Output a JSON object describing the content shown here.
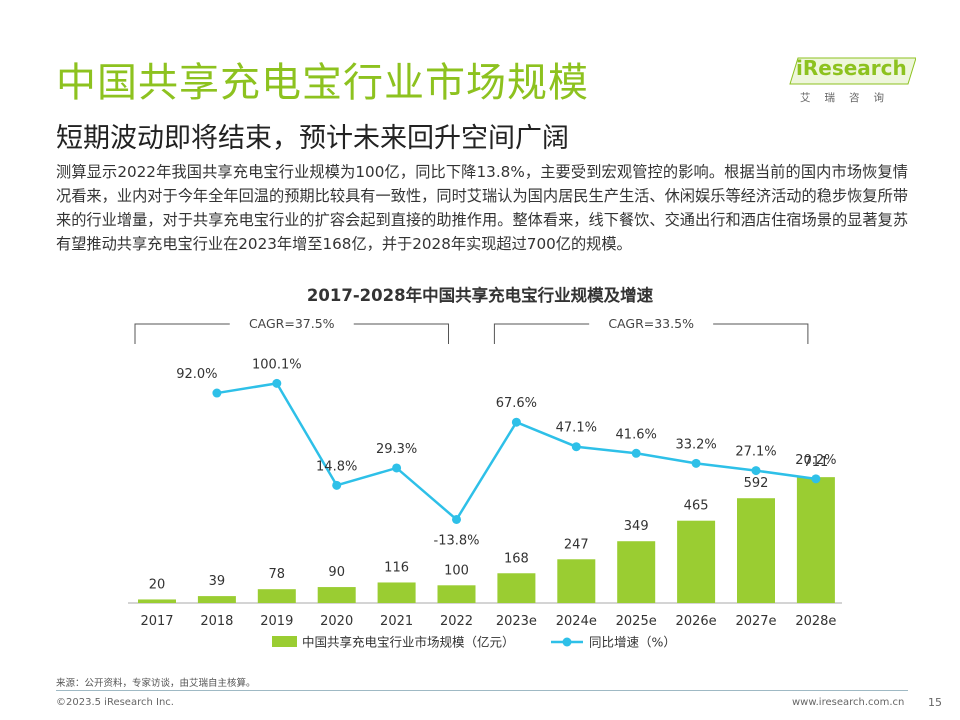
{
  "page": {
    "title": "中国共享充电宝行业市场规模",
    "subtitle": "短期波动即将结束，预计未来回升空间广阔",
    "paragraph": "测算显示2022年我国共享充电宝行业规模为100亿，同比下降13.8%，主要受到宏观管控的影响。根据当前的国内市场恢复情况看来，业内对于今年全年回温的预期比较具有一致性，同时艾瑞认为国内居民生产生活、休闲娱乐等经济活动的稳步恢复所带来的行业增量，对于共享充电宝行业的扩容会起到直接的助推作用。整体看来，线下餐饮、交通出行和酒店住宿场景的显著复苏有望推动共享充电宝行业在2023年增至168亿，并于2028年实现超过700亿的规模。",
    "logo_text": "iResearch",
    "logo_subtext": "艾瑞咨询",
    "source": "来源：公开资料，专家访谈，由艾瑞自主核算。",
    "copyright": "©2023.5 iResearch Inc.",
    "site": "www.iresearch.com.cn",
    "page_number": "15"
  },
  "colors": {
    "brand_green": "#8dc21f",
    "bar_green": "#9acd32",
    "line_blue": "#2ec0e8"
  },
  "chart_data": {
    "type": "bar",
    "title": "2017-2028年中国共享充电宝行业规模及增速",
    "categories": [
      "2017",
      "2018",
      "2019",
      "2020",
      "2021",
      "2022",
      "2023e",
      "2024e",
      "2025e",
      "2026e",
      "2027e",
      "2028e"
    ],
    "series": [
      {
        "name": "中国共享充电宝行业市场规模（亿元）",
        "type": "bar",
        "values": [
          20,
          39,
          78,
          90,
          116,
          100,
          168,
          247,
          349,
          465,
          592,
          711
        ]
      },
      {
        "name": "同比增速（%）",
        "type": "line",
        "values": [
          null,
          92.0,
          100.1,
          14.8,
          29.3,
          -13.8,
          67.6,
          47.1,
          41.6,
          33.2,
          27.1,
          20.2
        ],
        "labels": [
          "",
          "92.0%",
          "100.1%",
          "14.8%",
          "29.3%",
          "-13.8%",
          "67.6%",
          "47.1%",
          "41.6%",
          "33.2%",
          "27.1%",
          "20.2%"
        ]
      }
    ],
    "annotations": [
      {
        "text": "CAGR=37.5%",
        "from": "2017",
        "to": "2022"
      },
      {
        "text": "CAGR=33.5%",
        "from": "2023e",
        "to": "2028e"
      }
    ],
    "legend_placement": "bottom",
    "grid": false
  }
}
